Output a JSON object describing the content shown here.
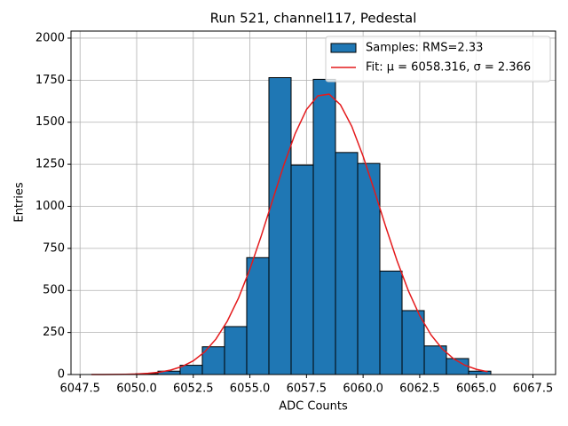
{
  "chart_data": {
    "type": "histogram",
    "title": "Run 521, channel117, Pedestal",
    "xlabel": "ADC Counts",
    "ylabel": "Entries",
    "xlim": [
      6047.1,
      6068.5
    ],
    "ylim": [
      0,
      2042
    ],
    "xticks": [
      6047.5,
      {
        "value": 6050,
        "label": "6050.0"
      },
      6052.5,
      {
        "value": 6055,
        "label": "6055.0"
      },
      6057.5,
      {
        "value": 6060,
        "label": "6060.0"
      },
      6062.5,
      {
        "value": 6065,
        "label": "6065.0"
      },
      6067.5
    ],
    "yticks": [
      0,
      250,
      500,
      750,
      1000,
      1250,
      1500,
      1750,
      2000
    ],
    "grid": true,
    "legend": "upper right",
    "series": [
      {
        "name": "Samples: RMS=2.33",
        "type": "histogram",
        "color": "#1f77b4",
        "edgecolor": "#000000",
        "bins": [
          6048,
          6048.98,
          6049.96,
          6050.94,
          6051.92,
          6052.9,
          6053.88,
          6054.86,
          6055.84,
          6056.82,
          6057.8,
          6058.78,
          6059.76,
          6060.74,
          6061.72,
          6062.7,
          6063.68,
          6064.66,
          6065.64
        ],
        "values": [
          0,
          0,
          5,
          20,
          55,
          165,
          285,
          695,
          1765,
          1245,
          1755,
          1320,
          1255,
          615,
          380,
          170,
          95,
          20
        ]
      },
      {
        "name": "Fit: μ = 6058.316, σ = 2.366",
        "type": "line",
        "color": "#e41a1c",
        "x": [
          6048,
          6048.5,
          6049,
          6049.5,
          6050,
          6050.5,
          6051,
          6051.5,
          6052,
          6052.5,
          6053,
          6053.5,
          6054,
          6054.5,
          6055,
          6055.5,
          6056,
          6056.5,
          6057,
          6057.5,
          6058,
          6058.5,
          6059,
          6059.5,
          6060,
          6060.5,
          6061,
          6061.5,
          6062,
          6062.5,
          6063,
          6063.5,
          6064,
          6064.5,
          6065,
          6065.5
        ],
        "values": [
          0.12,
          0.31,
          0.72,
          1.6,
          3.5,
          7.1,
          14.0,
          26.4,
          47.4,
          81.5,
          133.9,
          210.7,
          316.7,
          455.3,
          626.2,
          823.5,
          1035.6,
          1245.5,
          1432.4,
          1575.4,
          1657.1,
          1666.9,
          1603.5,
          1475.2,
          1297.8,
          1092.0,
          878.6,
          676.2,
          497.6,
          350.0,
          235.6,
          151.6,
          93.3,
          54.9,
          30.9,
          16.7
        ]
      }
    ]
  }
}
